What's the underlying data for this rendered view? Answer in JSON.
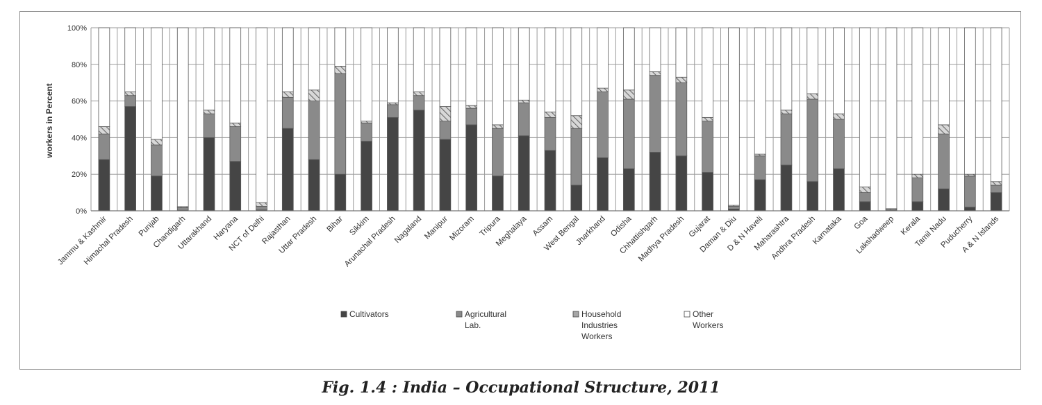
{
  "caption": "Fig. 1.4 : India – Occupational Structure, 2011",
  "chart_data": {
    "type": "bar",
    "stacked": true,
    "percent_stacked": true,
    "ylabel": "workers in Percent",
    "xlabel": "",
    "ylim": [
      0,
      100
    ],
    "yticks": [
      "0%",
      "20%",
      "40%",
      "60%",
      "80%",
      "100%"
    ],
    "grid": true,
    "legend_position": "bottom",
    "categories": [
      "Jammu & Kashmir",
      "Himachal Pradesh",
      "Punjab",
      "Chandigarh",
      "Uttarakhand",
      "Haryana",
      "NCT of Delhi",
      "Rajasthan",
      "Uttar Pradesh",
      "Bihar",
      "Sikkim",
      "Arunachal Pradesh",
      "Nagaland",
      "Manipur",
      "Mizoram",
      "Tripura",
      "Meghalaya",
      "Assam",
      "West Bengal",
      "Jharkhand",
      "Odisha",
      "Chhattishgarh",
      "Madhya Pradesh",
      "Gujarat",
      "Daman & Diu",
      "D & N Haveli",
      "Maharashtra",
      "Andhra Pradesh",
      "Karnataka",
      "Goa",
      "Lakshadweep",
      "Kerala",
      "Tamil Nadu",
      "Puducherry",
      "A & N Islands"
    ],
    "series": [
      {
        "name": "Cultivators",
        "color": "#454545",
        "pattern": "solid",
        "values": [
          28,
          57,
          19,
          0.3,
          40,
          27,
          0.5,
          45,
          28,
          20,
          38,
          51,
          55,
          39,
          47,
          19,
          41,
          33,
          14,
          29,
          23,
          32,
          30,
          21,
          1,
          17,
          25,
          16,
          23,
          5,
          0.2,
          5,
          12,
          2,
          10
        ]
      },
      {
        "name": "Agricultural Lab.",
        "color": "#8a8a8a",
        "pattern": "solid",
        "values": [
          14,
          6,
          17,
          1.5,
          13,
          19,
          2,
          17,
          32,
          55,
          10,
          7,
          8,
          10,
          9,
          26,
          18,
          18,
          31,
          36,
          38,
          42,
          40,
          28,
          1.5,
          13,
          28,
          45,
          27,
          5,
          0.5,
          13,
          30,
          17,
          4
        ]
      },
      {
        "name": "Household Industries Workers",
        "color": "#b9b9b9",
        "pattern": "hatched",
        "values": [
          4,
          2,
          3,
          0.5,
          2,
          2,
          2,
          3,
          6,
          4,
          1,
          1,
          2,
          8,
          1.5,
          2,
          1.5,
          3,
          7,
          2,
          5,
          2,
          3,
          2,
          0.5,
          1,
          2,
          3,
          3,
          3,
          0.5,
          2,
          5,
          1,
          2
        ]
      },
      {
        "name": "Other Workers",
        "color": "#ffffff",
        "pattern": "empty",
        "values": [
          54,
          35,
          61,
          97.7,
          45,
          52,
          95.5,
          35,
          34,
          21,
          51,
          41,
          35,
          43,
          42.5,
          53,
          39.5,
          46,
          48,
          33,
          34,
          24,
          27,
          49,
          97,
          69,
          45,
          36,
          47,
          87,
          98.8,
          80,
          53,
          80,
          84
        ]
      }
    ]
  }
}
